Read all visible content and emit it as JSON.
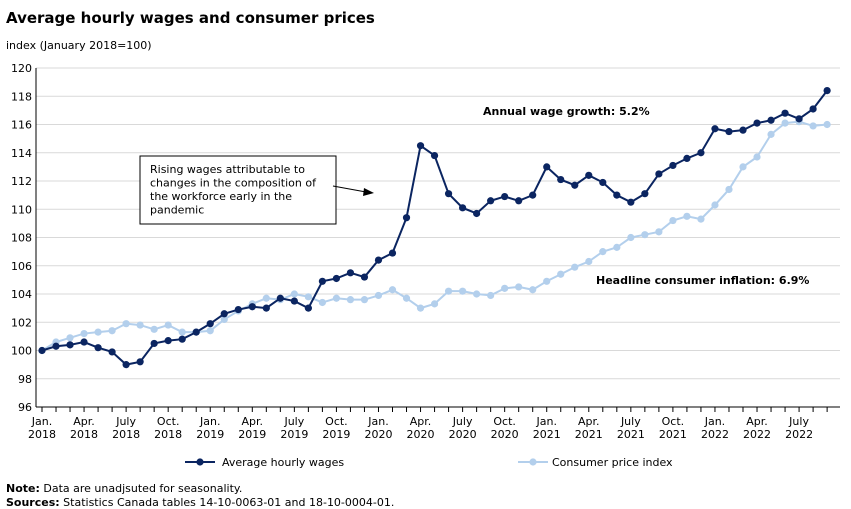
{
  "chart_data": {
    "type": "line",
    "title": "Average hourly wages and consumer prices",
    "ylabel": "index (January 2018=100)",
    "ylim": [
      96,
      120
    ],
    "yticks": [
      96,
      98,
      100,
      102,
      104,
      106,
      108,
      110,
      112,
      114,
      116,
      118,
      120
    ],
    "grid": true,
    "legend_position": "bottom",
    "x_start": "2018-01",
    "x_tick_labels": [
      [
        "Jan.",
        "2018"
      ],
      [
        "Apr.",
        "2018"
      ],
      [
        "July",
        "2018"
      ],
      [
        "Oct.",
        "2018"
      ],
      [
        "Jan.",
        "2019"
      ],
      [
        "Apr.",
        "2019"
      ],
      [
        "July",
        "2019"
      ],
      [
        "Oct.",
        "2019"
      ],
      [
        "Jan.",
        "2020"
      ],
      [
        "Apr.",
        "2020"
      ],
      [
        "July",
        "2020"
      ],
      [
        "Oct.",
        "2020"
      ],
      [
        "Jan.",
        "2021"
      ],
      [
        "Apr.",
        "2021"
      ],
      [
        "July",
        "2021"
      ],
      [
        "Oct.",
        "2021"
      ],
      [
        "Jan.",
        "2022"
      ],
      [
        "Apr.",
        "2022"
      ],
      [
        "July",
        "2022"
      ]
    ],
    "series": [
      {
        "name": "Average hourly wages",
        "color": "#0b2561",
        "values": [
          100.0,
          100.3,
          100.4,
          100.6,
          100.2,
          99.9,
          99.0,
          99.2,
          100.5,
          100.7,
          100.8,
          101.3,
          101.9,
          102.6,
          102.9,
          103.1,
          103.0,
          103.7,
          103.5,
          103.0,
          104.9,
          105.1,
          105.5,
          105.2,
          106.4,
          106.9,
          109.4,
          114.5,
          113.8,
          111.1,
          110.1,
          109.7,
          110.6,
          110.9,
          110.6,
          111.0,
          113.0,
          112.1,
          111.7,
          112.4,
          111.9,
          111.0,
          110.5,
          111.1,
          112.5,
          113.1,
          113.6,
          114.0,
          115.7,
          115.5,
          115.6,
          116.1,
          116.3,
          116.8,
          116.4,
          117.1,
          118.4
        ]
      },
      {
        "name": "Consumer price index",
        "color": "#b3cfec",
        "values": [
          100.0,
          100.6,
          100.9,
          101.2,
          101.3,
          101.4,
          101.9,
          101.8,
          101.5,
          101.8,
          101.3,
          101.3,
          101.4,
          102.2,
          102.8,
          103.3,
          103.7,
          103.6,
          104.0,
          103.8,
          103.4,
          103.7,
          103.6,
          103.6,
          103.9,
          104.3,
          103.7,
          103.0,
          103.3,
          104.2,
          104.2,
          104.0,
          103.9,
          104.4,
          104.5,
          104.3,
          104.9,
          105.4,
          105.9,
          106.3,
          107.0,
          107.3,
          108.0,
          108.2,
          108.4,
          109.2,
          109.5,
          109.3,
          110.3,
          111.4,
          113.0,
          113.7,
          115.3,
          116.1,
          116.2,
          115.9,
          116.0
        ]
      }
    ],
    "annotations": [
      "Rising wages attributable to changes in the composition of the workforce early in the pandemic",
      "Annual wage growth: 5.2%",
      "Headline consumer inflation: 6.9%"
    ]
  },
  "notes": {
    "note_label": "Note:",
    "note_text": " Data are unadjsuted for seasonality.",
    "sources_label": "Sources:",
    "sources_text": " Statistics Canada tables 14-10-0063-01 and 18-10-0004-01."
  }
}
